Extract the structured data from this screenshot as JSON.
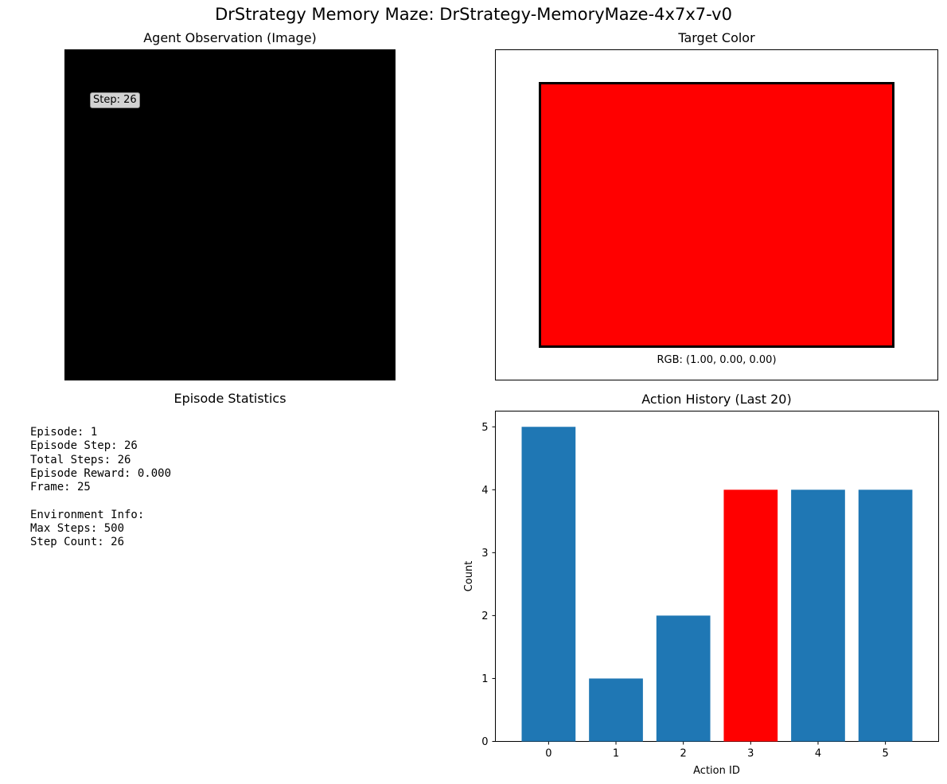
{
  "figure": {
    "suptitle": "DrStrategy Memory Maze: DrStrategy-MemoryMaze-4x7x7-v0"
  },
  "observation": {
    "title": "Agent Observation (Image)",
    "step_label": "Step: 26"
  },
  "target": {
    "title": "Target Color",
    "color": "#ff0000",
    "rgb_label": "RGB: (1.00, 0.00, 0.00)"
  },
  "stats": {
    "title": "Episode Statistics",
    "lines": [
      "Episode: 1",
      "Episode Step: 26",
      "Total Steps: 26",
      "Episode Reward: 0.000",
      "Frame: 25",
      "",
      "Environment Info:",
      "Max Steps: 500",
      "Step Count: 26"
    ]
  },
  "chart_data": {
    "type": "bar",
    "title": "Action History (Last 20)",
    "xlabel": "Action ID",
    "ylabel": "Count",
    "categories": [
      "0",
      "1",
      "2",
      "3",
      "4",
      "5"
    ],
    "values": [
      5,
      1,
      2,
      4,
      4,
      4
    ],
    "bar_colors": [
      "#1f77b4",
      "#1f77b4",
      "#1f77b4",
      "#ff0000",
      "#1f77b4",
      "#1f77b4"
    ],
    "yticks": [
      0,
      1,
      2,
      3,
      4,
      5
    ],
    "ylim": [
      0,
      5.25
    ],
    "grid": false
  }
}
